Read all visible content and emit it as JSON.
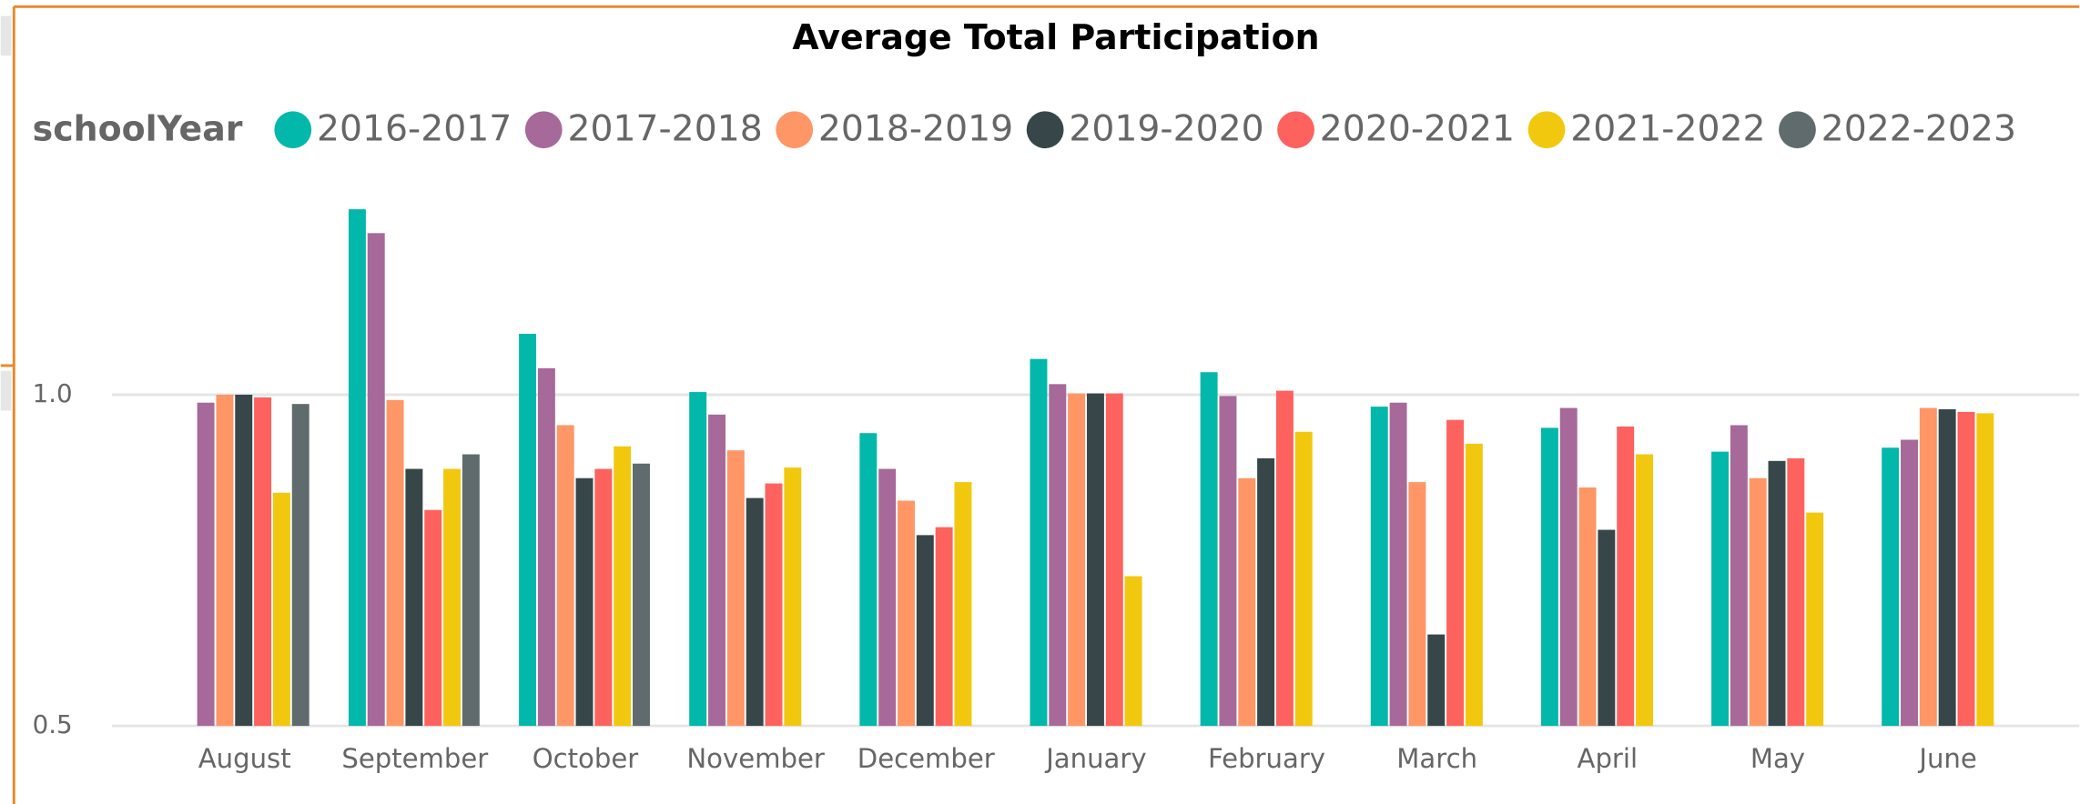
{
  "chart_data": {
    "type": "bar",
    "title": "Average Total Participation",
    "legend_title": "schoolYear",
    "categories": [
      "August",
      "September",
      "October",
      "November",
      "December",
      "January",
      "February",
      "March",
      "April",
      "May",
      "June"
    ],
    "series": [
      {
        "name": "2016-2017",
        "color": "#01B8AA",
        "values": [
          null,
          1.28,
          1.092,
          1.004,
          0.942,
          1.054,
          1.034,
          0.982,
          0.95,
          0.914,
          0.92
        ]
      },
      {
        "name": "2017-2018",
        "color": "#A66999",
        "values": [
          0.988,
          1.244,
          1.04,
          0.97,
          0.888,
          1.016,
          0.998,
          0.988,
          0.98,
          0.954,
          0.932
        ]
      },
      {
        "name": "2018-2019",
        "color": "#FE9666",
        "values": [
          1.0,
          0.992,
          0.954,
          0.916,
          0.84,
          1.002,
          0.874,
          0.868,
          0.86,
          0.874,
          0.98
        ]
      },
      {
        "name": "2019-2020",
        "color": "#374649",
        "values": [
          1.0,
          0.888,
          0.874,
          0.844,
          0.788,
          1.002,
          0.904,
          0.638,
          0.796,
          0.9,
          0.978
        ]
      },
      {
        "name": "2020-2021",
        "color": "#FD625E",
        "values": [
          0.996,
          0.826,
          0.888,
          0.866,
          0.8,
          1.002,
          1.006,
          0.962,
          0.952,
          0.904,
          0.974
        ]
      },
      {
        "name": "2021-2022",
        "color": "#F2C80F",
        "values": [
          0.852,
          0.888,
          0.922,
          0.89,
          0.868,
          0.726,
          0.944,
          0.926,
          0.91,
          0.822,
          0.972
        ]
      },
      {
        "name": "2022-2023",
        "color": "#5F6B6D",
        "values": [
          0.986,
          0.91,
          0.896,
          null,
          null,
          null,
          null,
          null,
          null,
          null,
          null
        ]
      }
    ],
    "ylim": [
      0.5,
      1.3
    ],
    "yticks": [
      0.5,
      {
        "value": 1,
        "label": "1.0"
      }
    ],
    "grid": true,
    "legend": "top"
  }
}
